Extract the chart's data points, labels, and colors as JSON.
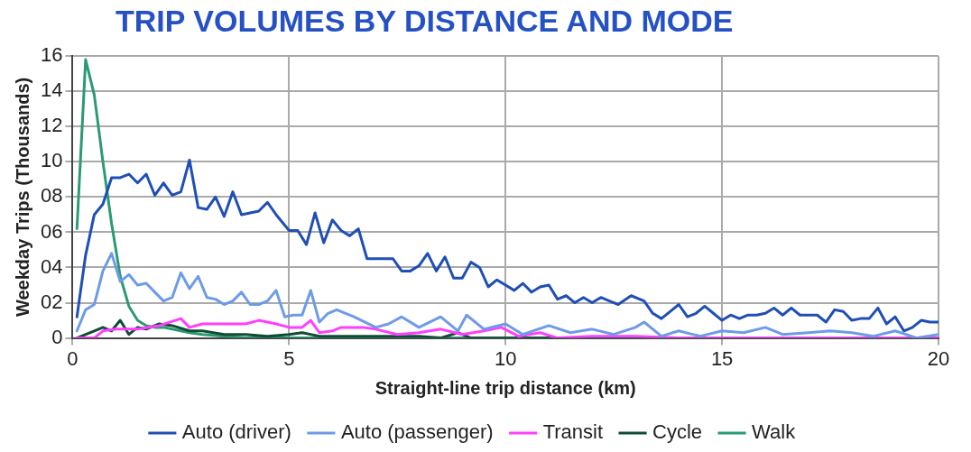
{
  "chart_data": {
    "type": "line",
    "title": "TRIP VOLUMES BY DISTANCE AND MODE",
    "xlabel": "Straight-line trip distance (km)",
    "ylabel": "Weekday Trips (Thousands)",
    "xlim": [
      0,
      20
    ],
    "xticks": [
      0,
      5,
      10,
      15,
      20
    ],
    "ylim": [
      0,
      16
    ],
    "yticks": [
      0,
      {
        "value": 2,
        "label": "02"
      },
      {
        "value": 4,
        "label": "04"
      },
      {
        "value": 6,
        "label": "06"
      },
      {
        "value": 8,
        "label": "08"
      },
      10,
      12,
      14,
      16
    ],
    "grid": true,
    "legend": "bottom",
    "marker": "none",
    "line_style": "solid",
    "series": [
      {
        "name": "Auto (driver)",
        "color": "#1f4fb4",
        "x": [
          0.1,
          0.3,
          0.5,
          0.7,
          0.9,
          1.1,
          1.3,
          1.5,
          1.7,
          1.9,
          2.1,
          2.3,
          2.5,
          2.7,
          2.9,
          3.1,
          3.3,
          3.5,
          3.7,
          3.9,
          4.1,
          4.3,
          4.5,
          4.7,
          5.0,
          5.2,
          5.4,
          5.6,
          5.8,
          6.0,
          6.2,
          6.4,
          6.6,
          6.8,
          7.0,
          7.2,
          7.4,
          7.6,
          7.8,
          8.0,
          8.2,
          8.4,
          8.6,
          8.8,
          9.0,
          9.2,
          9.4,
          9.6,
          9.8,
          10.0,
          10.2,
          10.4,
          10.6,
          10.8,
          11.0,
          11.2,
          11.4,
          11.6,
          11.8,
          12.0,
          12.2,
          12.4,
          12.6,
          12.9,
          13.2,
          13.4,
          13.6,
          13.8,
          14.0,
          14.2,
          14.4,
          14.6,
          14.8,
          15.0,
          15.2,
          15.4,
          15.6,
          15.8,
          16.0,
          16.2,
          16.4,
          16.6,
          16.8,
          17.0,
          17.2,
          17.4,
          17.6,
          17.8,
          18.0,
          18.2,
          18.4,
          18.6,
          18.8,
          19.0,
          19.2,
          19.4,
          19.6,
          19.8,
          20.0
        ],
        "values": [
          1.2,
          4.7,
          7.0,
          7.6,
          9.1,
          9.1,
          9.3,
          8.8,
          9.3,
          8.1,
          8.8,
          8.1,
          8.3,
          10.1,
          7.4,
          7.3,
          8.0,
          6.9,
          8.3,
          7.0,
          7.1,
          7.2,
          7.7,
          7.0,
          6.1,
          6.1,
          5.3,
          7.1,
          5.4,
          6.7,
          6.1,
          5.8,
          6.2,
          4.5,
          4.5,
          4.5,
          4.5,
          3.8,
          3.8,
          4.1,
          4.8,
          3.8,
          4.6,
          3.4,
          3.4,
          4.3,
          4.0,
          2.9,
          3.3,
          3.0,
          2.7,
          3.1,
          2.6,
          2.9,
          3.0,
          2.2,
          2.4,
          2.0,
          2.3,
          2.0,
          2.3,
          2.1,
          1.9,
          2.4,
          2.1,
          1.4,
          1.1,
          1.5,
          1.9,
          1.2,
          1.4,
          1.8,
          1.4,
          1.0,
          1.3,
          1.1,
          1.3,
          1.3,
          1.4,
          1.7,
          1.3,
          1.7,
          1.3,
          1.3,
          1.3,
          0.9,
          1.6,
          1.5,
          1.0,
          1.1,
          1.1,
          1.7,
          0.8,
          1.2,
          0.4,
          0.6,
          1.0,
          0.9,
          0.9
        ]
      },
      {
        "name": "Auto (passenger)",
        "color": "#6e9be8",
        "x": [
          0.1,
          0.3,
          0.5,
          0.7,
          0.9,
          1.1,
          1.3,
          1.5,
          1.7,
          1.9,
          2.1,
          2.3,
          2.5,
          2.7,
          2.9,
          3.1,
          3.3,
          3.5,
          3.7,
          3.9,
          4.1,
          4.3,
          4.5,
          4.7,
          4.9,
          5.1,
          5.3,
          5.5,
          5.7,
          5.9,
          6.1,
          6.5,
          7.0,
          7.3,
          7.6,
          8.0,
          8.5,
          8.9,
          9.1,
          9.5,
          10.0,
          10.4,
          11.0,
          11.5,
          12.0,
          12.5,
          13.0,
          13.2,
          13.6,
          14.0,
          14.5,
          15.0,
          15.5,
          16.0,
          16.4,
          17.0,
          17.5,
          18.0,
          18.5,
          19.0,
          19.5,
          20.0
        ],
        "values": [
          0.4,
          1.6,
          1.9,
          3.8,
          4.8,
          3.2,
          3.6,
          3.0,
          3.1,
          2.6,
          2.1,
          2.3,
          3.7,
          2.8,
          3.5,
          2.3,
          2.2,
          1.9,
          2.1,
          2.6,
          1.9,
          1.9,
          2.1,
          2.7,
          1.2,
          1.3,
          1.3,
          2.7,
          0.9,
          1.4,
          1.6,
          1.2,
          0.6,
          0.8,
          1.2,
          0.6,
          1.2,
          0.4,
          1.3,
          0.5,
          0.8,
          0.2,
          0.7,
          0.3,
          0.5,
          0.2,
          0.6,
          0.9,
          0.1,
          0.4,
          0.1,
          0.4,
          0.3,
          0.6,
          0.2,
          0.3,
          0.4,
          0.3,
          0.1,
          0.4,
          0.0,
          0.2
        ]
      },
      {
        "name": "Transit",
        "color": "#ff3fff",
        "x": [
          0.1,
          0.5,
          0.7,
          1.0,
          1.5,
          2.0,
          2.5,
          2.7,
          3.0,
          3.5,
          4.0,
          4.3,
          4.7,
          5.0,
          5.3,
          5.5,
          5.7,
          6.0,
          6.2,
          6.7,
          7.0,
          7.5,
          8.0,
          8.5,
          9.0,
          9.5,
          9.9,
          10.3,
          10.8,
          11.2,
          12.0,
          13.0,
          14.0,
          16.0,
          18.0,
          20.0
        ],
        "values": [
          0,
          0,
          0.4,
          0.5,
          0.5,
          0.7,
          1.1,
          0.6,
          0.8,
          0.8,
          0.8,
          1.0,
          0.8,
          0.6,
          0.6,
          1.0,
          0.3,
          0.4,
          0.6,
          0.6,
          0.5,
          0.2,
          0.3,
          0.5,
          0.2,
          0.4,
          0.6,
          0.1,
          0.3,
          0,
          0.1,
          0.1,
          0,
          0,
          0,
          0
        ]
      },
      {
        "name": "Cycle",
        "color": "#0f4d33",
        "x": [
          0.1,
          0.5,
          0.7,
          0.9,
          1.1,
          1.3,
          1.5,
          1.7,
          2.0,
          2.3,
          2.7,
          3.0,
          3.5,
          4.0,
          4.5,
          5.0,
          5.3,
          5.7,
          6.0,
          7.0,
          8.0,
          8.5,
          8.9,
          9.2,
          10.0,
          12.0,
          20.0
        ],
        "values": [
          0,
          0.4,
          0.6,
          0.4,
          1.0,
          0.2,
          0.6,
          0.5,
          0.8,
          0.7,
          0.4,
          0.4,
          0.2,
          0.2,
          0.1,
          0.2,
          0.3,
          0.1,
          0.1,
          0.1,
          0.1,
          0,
          0.3,
          0,
          0,
          0,
          0
        ]
      },
      {
        "name": "Walk",
        "color": "#2a9a74",
        "x": [
          0.1,
          0.3,
          0.5,
          0.7,
          0.9,
          1.1,
          1.3,
          1.5,
          1.7,
          1.9,
          2.1,
          2.3,
          2.7,
          3.0,
          3.5,
          4.0,
          5.0,
          10.0,
          20.0
        ],
        "values": [
          6.2,
          15.8,
          13.8,
          10.0,
          6.5,
          3.5,
          1.8,
          1.0,
          0.7,
          0.6,
          0.6,
          0.5,
          0.3,
          0.2,
          0.1,
          0,
          0,
          0,
          0
        ]
      }
    ]
  }
}
